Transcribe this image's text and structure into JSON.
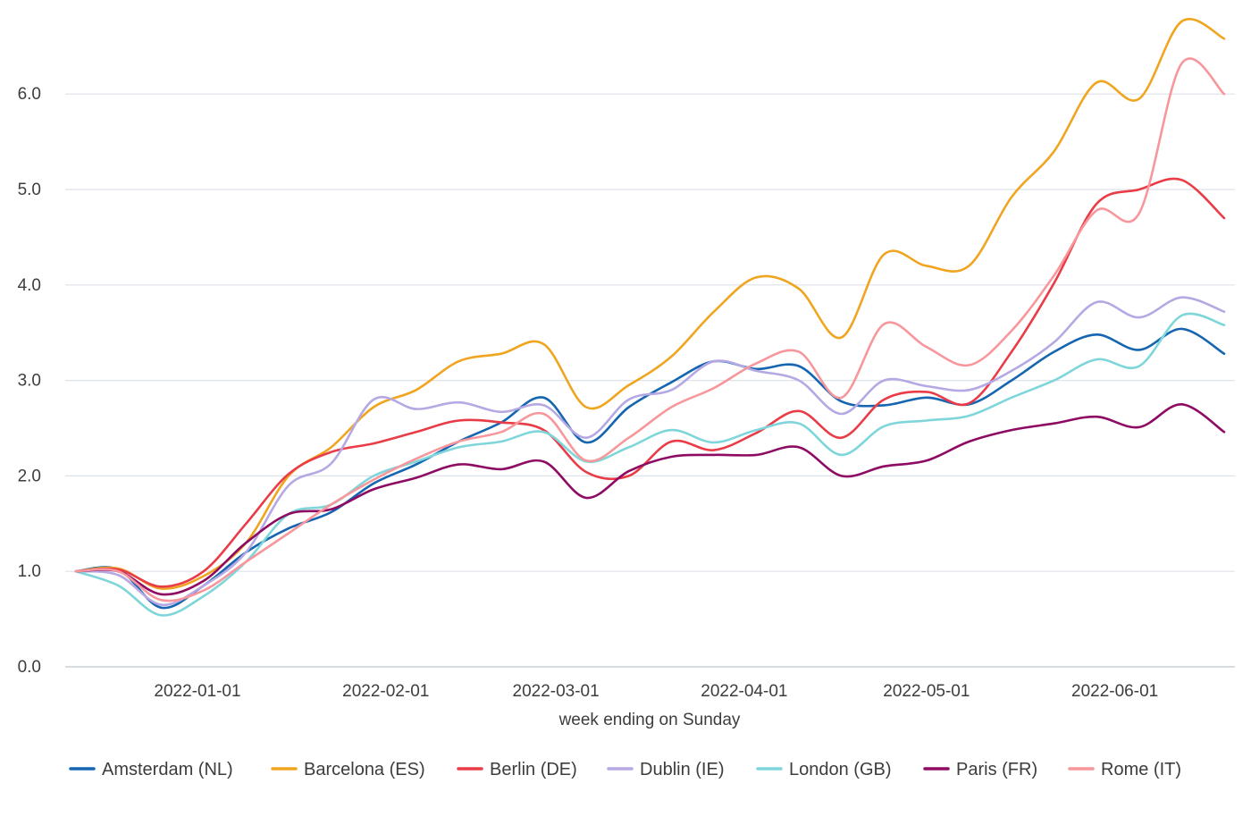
{
  "chart_data": {
    "type": "line",
    "title": "",
    "xlabel": "week ending on Sunday",
    "ylabel": "",
    "ylim": [
      0,
      6.6
    ],
    "yticks": [
      0,
      1,
      2,
      3,
      4,
      5,
      6
    ],
    "ytick_labels": [
      "0.0",
      "1.0",
      "2.0",
      "3.0",
      "4.0",
      "5.0",
      "6.0"
    ],
    "xticks": [
      "2022-01-01",
      "2022-02-01",
      "2022-03-01",
      "2022-04-01",
      "2022-05-01",
      "2022-06-01"
    ],
    "grid": "horizontal",
    "legend_position": "bottom",
    "x": [
      "2021-12-12",
      "2021-12-19",
      "2021-12-26",
      "2022-01-02",
      "2022-01-09",
      "2022-01-16",
      "2022-01-23",
      "2022-01-30",
      "2022-02-06",
      "2022-02-13",
      "2022-02-20",
      "2022-02-27",
      "2022-03-06",
      "2022-03-13",
      "2022-03-20",
      "2022-03-27",
      "2022-04-03",
      "2022-04-10",
      "2022-04-17",
      "2022-04-24",
      "2022-05-01",
      "2022-05-08",
      "2022-05-15",
      "2022-05-22",
      "2022-05-29",
      "2022-06-05",
      "2022-06-12",
      "2022-06-19"
    ],
    "series": [
      {
        "name": "Amsterdam (NL)",
        "color": "#1565b0",
        "values": [
          1.0,
          1.02,
          0.62,
          0.85,
          1.2,
          1.45,
          1.62,
          1.92,
          2.12,
          2.36,
          2.56,
          2.82,
          2.35,
          2.72,
          2.98,
          3.2,
          3.12,
          3.15,
          2.78,
          2.74,
          2.82,
          2.75,
          3.0,
          3.3,
          3.48,
          3.32,
          3.54,
          3.28
        ]
      },
      {
        "name": "Barcelona (ES)",
        "color": "#f0a520",
        "values": [
          1.0,
          1.03,
          0.82,
          0.95,
          1.3,
          2.0,
          2.3,
          2.72,
          2.9,
          3.2,
          3.28,
          3.38,
          2.72,
          2.95,
          3.25,
          3.72,
          4.08,
          3.96,
          3.45,
          4.32,
          4.2,
          4.2,
          4.92,
          5.4,
          6.12,
          5.95,
          6.76,
          6.58
        ]
      },
      {
        "name": "Berlin (DE)",
        "color": "#ea3c47",
        "values": [
          1.0,
          1.02,
          0.84,
          1.0,
          1.5,
          2.02,
          2.25,
          2.34,
          2.46,
          2.58,
          2.56,
          2.48,
          2.04,
          2.0,
          2.36,
          2.27,
          2.45,
          2.68,
          2.4,
          2.8,
          2.88,
          2.76,
          3.3,
          4.02,
          4.85,
          5.0,
          5.1,
          4.7
        ]
      },
      {
        "name": "Dublin (IE)",
        "color": "#b5a8e3",
        "values": [
          1.0,
          0.96,
          0.65,
          0.85,
          1.2,
          1.9,
          2.13,
          2.8,
          2.7,
          2.77,
          2.67,
          2.74,
          2.4,
          2.8,
          2.9,
          3.2,
          3.1,
          3.0,
          2.65,
          3.0,
          2.94,
          2.9,
          3.1,
          3.4,
          3.82,
          3.66,
          3.87,
          3.72
        ]
      },
      {
        "name": "London (GB)",
        "color": "#7fd6da",
        "values": [
          1.0,
          0.85,
          0.54,
          0.74,
          1.1,
          1.6,
          1.7,
          2.0,
          2.15,
          2.3,
          2.36,
          2.46,
          2.15,
          2.3,
          2.48,
          2.35,
          2.48,
          2.55,
          2.22,
          2.52,
          2.58,
          2.63,
          2.82,
          3.0,
          3.22,
          3.15,
          3.68,
          3.58
        ]
      },
      {
        "name": "Paris (FR)",
        "color": "#8e0b63",
        "values": [
          1.0,
          1.0,
          0.76,
          0.9,
          1.3,
          1.6,
          1.65,
          1.86,
          1.98,
          2.12,
          2.07,
          2.15,
          1.77,
          2.05,
          2.2,
          2.22,
          2.22,
          2.3,
          2.0,
          2.1,
          2.16,
          2.36,
          2.48,
          2.55,
          2.62,
          2.51,
          2.75,
          2.46
        ]
      },
      {
        "name": "Rome (IT)",
        "color": "#f7979c",
        "values": [
          1.0,
          1.0,
          0.7,
          0.8,
          1.1,
          1.4,
          1.7,
          1.96,
          2.18,
          2.36,
          2.46,
          2.65,
          2.16,
          2.4,
          2.72,
          2.92,
          3.18,
          3.3,
          2.82,
          3.59,
          3.35,
          3.16,
          3.52,
          4.1,
          4.78,
          4.75,
          6.32,
          6.0
        ]
      }
    ]
  }
}
